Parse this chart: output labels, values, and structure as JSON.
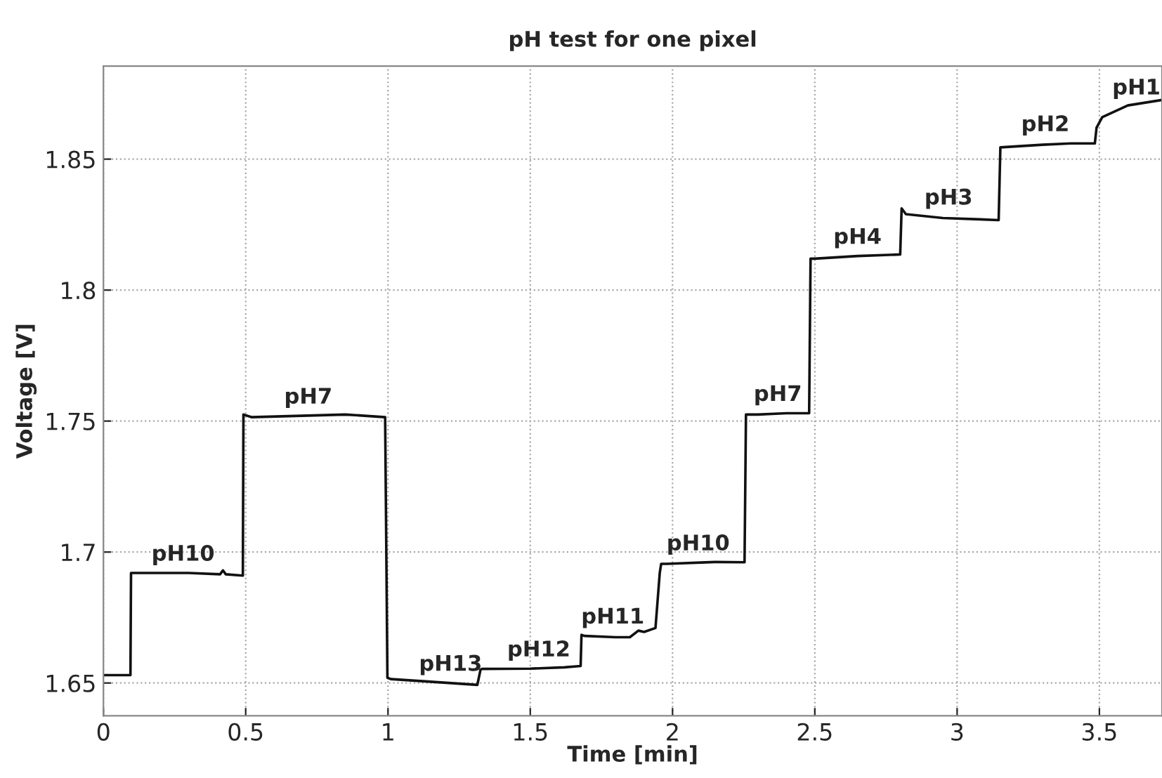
{
  "chart_data": {
    "type": "line",
    "title": "pH test for one pixel",
    "xlabel": "Time [min]",
    "ylabel": "Voltage [V]",
    "xlim": [
      0,
      3.72
    ],
    "ylim": [
      1.6375,
      1.8855
    ],
    "xticks": [
      0,
      0.5,
      1,
      1.5,
      2,
      2.5,
      3,
      3.5
    ],
    "yticks": [
      1.65,
      1.7,
      1.75,
      1.8,
      1.85
    ],
    "grid": true,
    "line_style": "solid",
    "marker": "none",
    "series": [
      {
        "color": "#111111",
        "x": [
          0,
          0.095,
          0.097,
          0.3,
          0.41,
          0.42,
          0.43,
          0.49,
          0.492,
          0.52,
          0.85,
          0.99,
          0.998,
          1.01,
          1.15,
          1.314,
          1.325,
          1.33,
          1.5,
          1.62,
          1.677,
          1.68,
          1.69,
          1.8,
          1.85,
          1.88,
          1.9,
          1.94,
          1.955,
          1.96,
          1.98,
          2.1,
          2.15,
          2.253,
          2.258,
          2.3,
          2.4,
          2.48,
          2.485,
          2.5,
          2.65,
          2.8,
          2.805,
          2.82,
          2.95,
          3.08,
          3.146,
          3.152,
          3.3,
          3.4,
          3.484,
          3.49,
          3.51,
          3.6,
          3.72
        ],
        "values": [
          1.653,
          1.653,
          1.692,
          1.692,
          1.6915,
          1.693,
          1.6915,
          1.691,
          1.7525,
          1.7515,
          1.7525,
          1.7515,
          1.652,
          1.6515,
          1.6505,
          1.6493,
          1.655,
          1.6554,
          1.6555,
          1.656,
          1.6565,
          1.6684,
          1.668,
          1.6675,
          1.6675,
          1.67,
          1.6695,
          1.671,
          1.692,
          1.6955,
          1.6955,
          1.696,
          1.6962,
          1.6961,
          1.7525,
          1.7525,
          1.753,
          1.753,
          1.812,
          1.812,
          1.813,
          1.8136,
          1.8312,
          1.829,
          1.8275,
          1.827,
          1.8267,
          1.8545,
          1.8555,
          1.856,
          1.856,
          1.862,
          1.866,
          1.8705,
          1.8726
        ]
      }
    ],
    "annotations": [
      {
        "text": "pH10",
        "x": 0.28,
        "y": 1.692
      },
      {
        "text": "pH7",
        "x": 0.72,
        "y": 1.752
      },
      {
        "text": "pH13",
        "x": 1.22,
        "y": 1.65
      },
      {
        "text": "pH12",
        "x": 1.53,
        "y": 1.6555
      },
      {
        "text": "pH11",
        "x": 1.79,
        "y": 1.668
      },
      {
        "text": "pH10",
        "x": 2.09,
        "y": 1.696
      },
      {
        "text": "pH7",
        "x": 2.37,
        "y": 1.753
      },
      {
        "text": "pH4",
        "x": 2.65,
        "y": 1.813
      },
      {
        "text": "pH3",
        "x": 2.97,
        "y": 1.828
      },
      {
        "text": "pH2",
        "x": 3.31,
        "y": 1.856
      },
      {
        "text": "pH1",
        "x": 3.63,
        "y": 1.87
      }
    ]
  }
}
